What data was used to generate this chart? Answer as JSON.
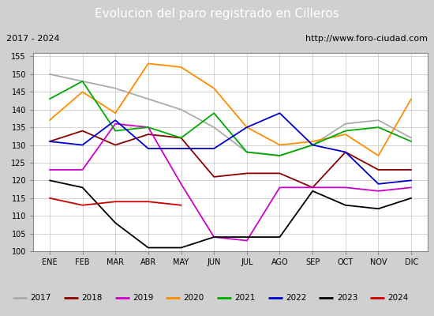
{
  "title": "Evolucion del paro registrado en Cilleros",
  "subtitle_left": "2017 - 2024",
  "subtitle_right": "http://www.foro-ciudad.com",
  "months": [
    "ENE",
    "FEB",
    "MAR",
    "ABR",
    "MAY",
    "JUN",
    "JUL",
    "AGO",
    "SEP",
    "OCT",
    "NOV",
    "DIC"
  ],
  "ylim": [
    100,
    156
  ],
  "yticks": [
    100,
    105,
    110,
    115,
    120,
    125,
    130,
    135,
    140,
    145,
    150,
    155
  ],
  "series": {
    "2017": {
      "color": "#aaaaaa",
      "values": [
        150,
        148,
        146,
        143,
        140,
        135,
        128,
        127,
        130,
        136,
        137,
        132
      ]
    },
    "2018": {
      "color": "#8b0000",
      "values": [
        131,
        134,
        130,
        133,
        132,
        121,
        122,
        122,
        118,
        128,
        123,
        123
      ]
    },
    "2019": {
      "color": "#cc00cc",
      "values": [
        123,
        123,
        136,
        135,
        119,
        104,
        103,
        118,
        118,
        118,
        117,
        118
      ]
    },
    "2020": {
      "color": "#ff8c00",
      "values": [
        137,
        145,
        139,
        153,
        152,
        146,
        135,
        130,
        131,
        133,
        127,
        143
      ]
    },
    "2021": {
      "color": "#00aa00",
      "values": [
        143,
        148,
        134,
        135,
        132,
        139,
        128,
        127,
        130,
        134,
        135,
        131
      ]
    },
    "2022": {
      "color": "#0000cc",
      "values": [
        131,
        130,
        137,
        129,
        129,
        129,
        135,
        139,
        130,
        128,
        119,
        120
      ]
    },
    "2023": {
      "color": "#000000",
      "values": [
        120,
        118,
        108,
        101,
        101,
        104,
        104,
        104,
        117,
        113,
        112,
        115
      ]
    },
    "2024": {
      "color": "#cc0000",
      "values": [
        115,
        113,
        114,
        114,
        113,
        null,
        null,
        null,
        null,
        null,
        null,
        null
      ]
    }
  },
  "background_color": "#d0d0d0",
  "plot_bg": "#ffffff",
  "title_bg": "#4f81bd",
  "title_color": "#ffffff",
  "subtitle_bg": "#e8e8e8",
  "grid_color": "#cccccc",
  "legend_bg": "#f0f0f0",
  "title_fontsize": 11,
  "subtitle_fontsize": 8,
  "tick_fontsize": 7,
  "legend_fontsize": 7.5
}
